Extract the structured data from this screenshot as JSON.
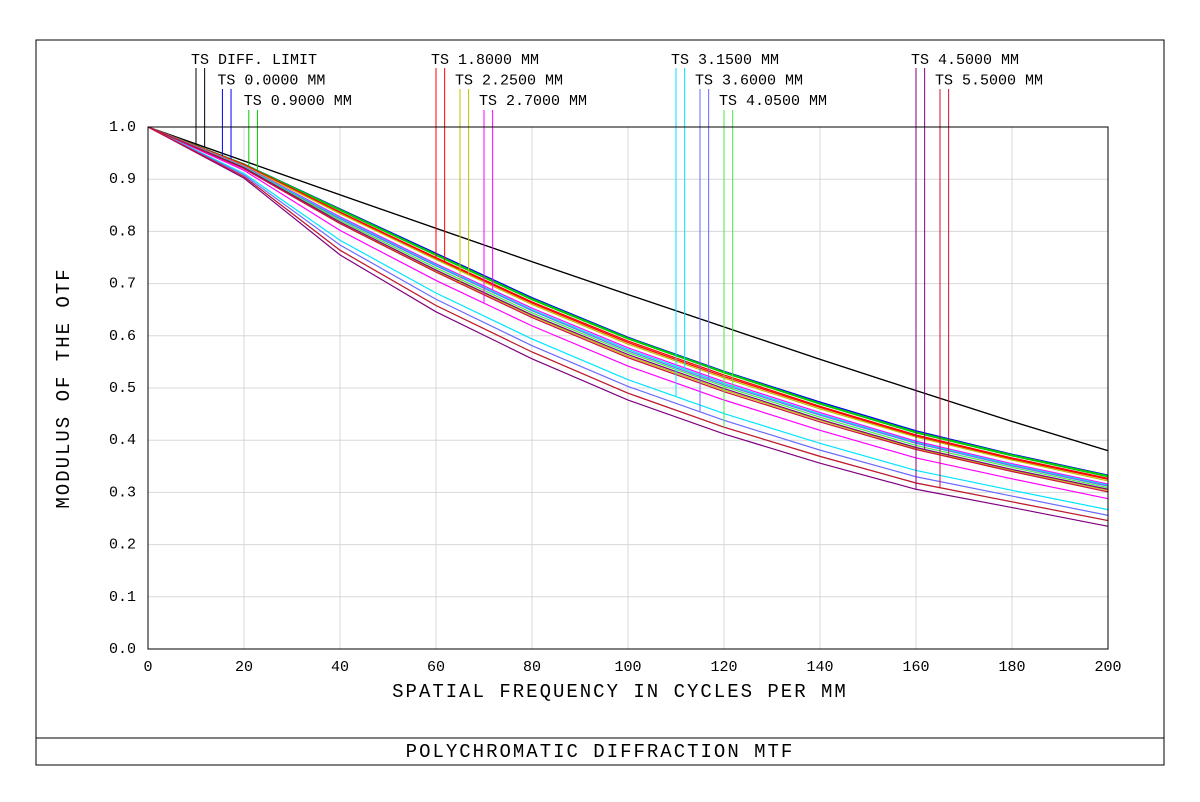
{
  "chart_data": {
    "type": "line",
    "title": "POLYCHROMATIC DIFFRACTION MTF",
    "x_label": "SPATIAL FREQUENCY IN CYCLES PER MM",
    "y_label": "MODULUS OF THE OTF",
    "x": [
      0,
      20,
      40,
      60,
      80,
      100,
      120,
      140,
      160,
      180,
      200
    ],
    "xlim": [
      0,
      200
    ],
    "xticks": [
      0,
      20,
      40,
      60,
      80,
      100,
      120,
      140,
      160,
      180,
      200
    ],
    "ylim": [
      0,
      1
    ],
    "yticks": [
      {
        "value": 0,
        "label": "0.0"
      },
      0.1,
      0.2,
      0.3,
      0.4,
      0.5,
      0.6,
      0.7,
      0.8,
      0.9,
      {
        "value": 1,
        "label": "1.0"
      }
    ],
    "grid": true,
    "series": [
      {
        "name": "TS DIFF. LIMIT",
        "color": "#000000",
        "tangential": [
          1,
          0.935,
          0.87,
          0.806,
          0.742,
          0.679,
          0.617,
          0.555,
          0.495,
          0.436,
          0.38
        ],
        "sagittal": [
          1,
          0.935,
          0.87,
          0.806,
          0.742,
          0.679,
          0.617,
          0.555,
          0.495,
          0.436,
          0.38
        ]
      },
      {
        "name": "TS 0.0000 MM",
        "color": "#0000ff",
        "tangential": [
          1,
          0.929,
          0.843,
          0.758,
          0.673,
          0.597,
          0.532,
          0.473,
          0.418,
          0.373,
          0.333
        ],
        "sagittal": [
          1,
          0.929,
          0.843,
          0.758,
          0.673,
          0.597,
          0.532,
          0.473,
          0.418,
          0.373,
          0.333
        ]
      },
      {
        "name": "TS 0.9000 MM",
        "color": "#00cc00",
        "tangential": [
          1,
          0.929,
          0.84,
          0.754,
          0.669,
          0.594,
          0.529,
          0.469,
          0.414,
          0.37,
          0.33
        ],
        "sagittal": [
          1,
          0.929,
          0.842,
          0.756,
          0.671,
          0.596,
          0.531,
          0.471,
          0.416,
          0.372,
          0.332
        ]
      },
      {
        "name": "TS 1.8000 MM",
        "color": "#ff0000",
        "tangential": [
          1,
          0.927,
          0.836,
          0.748,
          0.663,
          0.587,
          0.522,
          0.463,
          0.408,
          0.364,
          0.325
        ],
        "sagittal": [
          1,
          0.928,
          0.837,
          0.75,
          0.665,
          0.59,
          0.525,
          0.465,
          0.41,
          0.366,
          0.327
        ]
      },
      {
        "name": "TS 2.2500 MM",
        "color": "#c0c000",
        "tangential": [
          1,
          0.921,
          0.817,
          0.724,
          0.638,
          0.561,
          0.496,
          0.438,
          0.384,
          0.342,
          0.304
        ],
        "sagittal": [
          1,
          0.926,
          0.834,
          0.746,
          0.66,
          0.584,
          0.519,
          0.46,
          0.406,
          0.362,
          0.322
        ]
      },
      {
        "name": "TS 2.7000 MM",
        "color": "#ff00ff",
        "tangential": [
          1,
          0.917,
          0.802,
          0.706,
          0.619,
          0.542,
          0.477,
          0.419,
          0.366,
          0.326,
          0.288
        ],
        "sagittal": [
          1,
          0.925,
          0.828,
          0.738,
          0.653,
          0.577,
          0.512,
          0.453,
          0.398,
          0.355,
          0.316
        ]
      },
      {
        "name": "TS 3.1500 MM",
        "color": "#00e5ff",
        "tangential": [
          1,
          0.911,
          0.783,
          0.682,
          0.594,
          0.516,
          0.451,
          0.394,
          0.342,
          0.304,
          0.267
        ],
        "sagittal": [
          1,
          0.924,
          0.826,
          0.736,
          0.65,
          0.574,
          0.509,
          0.45,
          0.396,
          0.353,
          0.314
        ]
      },
      {
        "name": "TS 3.6000 MM",
        "color": "#6a6aff",
        "tangential": [
          1,
          0.908,
          0.774,
          0.67,
          0.581,
          0.503,
          0.438,
          0.381,
          0.33,
          0.293,
          0.256
        ],
        "sagittal": [
          1,
          0.923,
          0.824,
          0.734,
          0.648,
          0.571,
          0.506,
          0.448,
          0.394,
          0.351,
          0.312
        ]
      },
      {
        "name": "TS 4.0500 MM",
        "color": "#44ee44",
        "tangential": [
          1,
          0.905,
          0.764,
          0.658,
          0.569,
          0.49,
          0.425,
          0.369,
          0.318,
          0.282,
          0.246
        ],
        "sagittal": [
          1,
          0.923,
          0.821,
          0.73,
          0.644,
          0.568,
          0.503,
          0.444,
          0.39,
          0.348,
          0.309
        ]
      },
      {
        "name": "TS 4.5000 MM",
        "color": "#800080",
        "tangential": [
          1,
          0.902,
          0.755,
          0.646,
          0.556,
          0.477,
          0.412,
          0.356,
          0.306,
          0.271,
          0.235
        ],
        "sagittal": [
          1,
          0.922,
          0.818,
          0.726,
          0.64,
          0.564,
          0.499,
          0.44,
          0.386,
          0.344,
          0.306
        ]
      },
      {
        "name": "TS 5.5000 MM",
        "color": "#d0103a",
        "tangential": [
          1,
          0.905,
          0.764,
          0.658,
          0.569,
          0.49,
          0.425,
          0.369,
          0.318,
          0.282,
          0.246
        ],
        "sagittal": [
          1,
          0.92,
          0.815,
          0.722,
          0.635,
          0.558,
          0.493,
          0.435,
          0.382,
          0.34,
          0.301
        ]
      }
    ]
  }
}
